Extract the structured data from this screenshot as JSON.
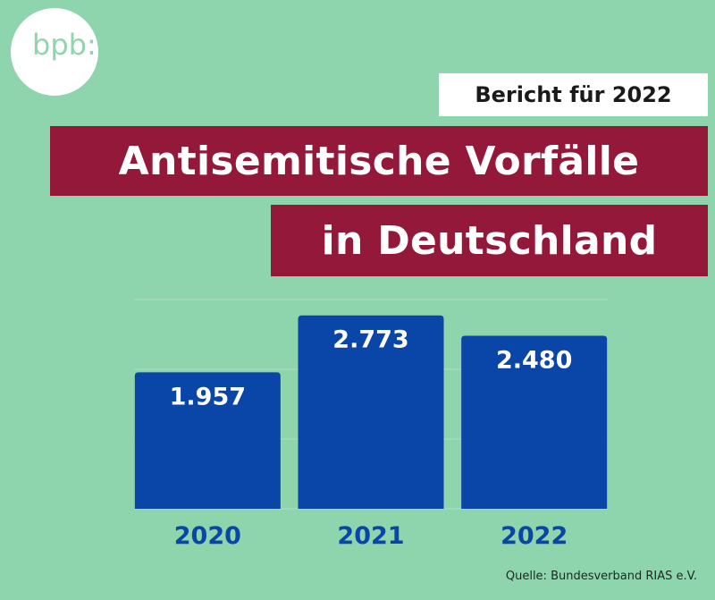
{
  "logo": {
    "text": "bpb:"
  },
  "header": {
    "subtitle": "Bericht für 2022",
    "title_line1": "Antisemitische Vorfälle",
    "title_line2": "in Deutschland"
  },
  "source": "Quelle: Bundesverband RIAS e.V.",
  "colors": {
    "background": "#8ed4ad",
    "bar": "#0a45a8",
    "title_bar": "#93183a",
    "axis_label": "#0a45a8",
    "value_label": "#ffffff"
  },
  "chart_data": {
    "type": "bar",
    "categories": [
      "2020",
      "2021",
      "2022"
    ],
    "values": [
      1957,
      2773,
      2480
    ],
    "value_labels": [
      "1.957",
      "2.773",
      "2.480"
    ],
    "title": "",
    "xlabel": "",
    "ylabel": "",
    "ylim": [
      0,
      3000
    ],
    "grid": true
  }
}
